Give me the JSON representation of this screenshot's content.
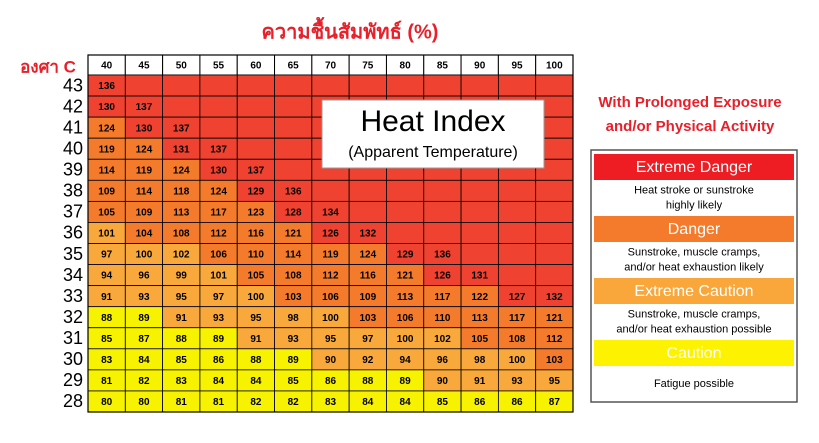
{
  "header": {
    "title": "ความชื้นสัมพัทธ์ (%)",
    "unit_label": "องศา C"
  },
  "table": {
    "columns": [
      40,
      45,
      50,
      55,
      60,
      65,
      70,
      75,
      80,
      85,
      90,
      95,
      100
    ],
    "rows": [
      {
        "temp": 43,
        "cells": [
          136
        ]
      },
      {
        "temp": 42,
        "cells": [
          130,
          137
        ]
      },
      {
        "temp": 41,
        "cells": [
          124,
          130,
          137
        ]
      },
      {
        "temp": 40,
        "cells": [
          119,
          124,
          131,
          137
        ]
      },
      {
        "temp": 39,
        "cells": [
          114,
          119,
          124,
          130,
          137
        ]
      },
      {
        "temp": 38,
        "cells": [
          109,
          114,
          118,
          124,
          129,
          136
        ]
      },
      {
        "temp": 37,
        "cells": [
          105,
          109,
          113,
          117,
          123,
          128,
          134
        ]
      },
      {
        "temp": 36,
        "cells": [
          101,
          104,
          108,
          112,
          116,
          121,
          126,
          132
        ]
      },
      {
        "temp": 35,
        "cells": [
          97,
          100,
          102,
          106,
          110,
          114,
          119,
          124,
          129,
          136
        ]
      },
      {
        "temp": 34,
        "cells": [
          94,
          96,
          99,
          101,
          105,
          108,
          112,
          116,
          121,
          126,
          131
        ]
      },
      {
        "temp": 33,
        "cells": [
          91,
          93,
          95,
          97,
          100,
          103,
          106,
          109,
          113,
          117,
          122,
          127,
          132
        ]
      },
      {
        "temp": 32,
        "cells": [
          88,
          89,
          91,
          93,
          95,
          98,
          100,
          103,
          106,
          110,
          113,
          117,
          121
        ]
      },
      {
        "temp": 31,
        "cells": [
          85,
          87,
          88,
          89,
          91,
          93,
          95,
          97,
          100,
          102,
          105,
          108,
          112
        ]
      },
      {
        "temp": 30,
        "cells": [
          83,
          84,
          85,
          86,
          88,
          89,
          90,
          92,
          94,
          96,
          98,
          100,
          103
        ]
      },
      {
        "temp": 29,
        "cells": [
          81,
          82,
          83,
          84,
          84,
          85,
          86,
          88,
          89,
          90,
          91,
          93,
          95
        ]
      },
      {
        "temp": 28,
        "cells": [
          80,
          80,
          81,
          81,
          82,
          82,
          83,
          84,
          84,
          85,
          86,
          86,
          87
        ]
      }
    ]
  },
  "overlay": {
    "title": "Heat Index",
    "subtitle": "(Apparent Temperature)"
  },
  "legend": {
    "title_lines": [
      "With Prolonged Exposure",
      "and/or Physical Activity"
    ],
    "items": [
      {
        "level": "Extreme Danger",
        "color": "#ee1d23",
        "description": [
          "Heat stroke or sunstroke",
          "highly likely"
        ]
      },
      {
        "level": "Danger",
        "color": "#f47b2b",
        "description": [
          "Sunstroke, muscle cramps,",
          "and/or heat exhaustion likely"
        ]
      },
      {
        "level": "Extreme Caution",
        "color": "#f9a73a",
        "description": [
          "Sunstroke, muscle cramps,",
          "and/or heat exhaustion possible"
        ]
      },
      {
        "level": "Caution",
        "color": "#fdf200",
        "description": [
          "Fatigue possible"
        ]
      }
    ]
  }
}
